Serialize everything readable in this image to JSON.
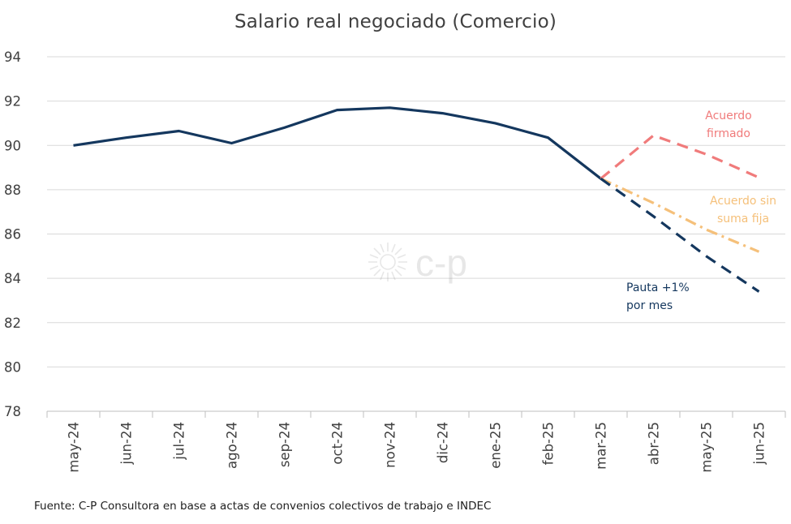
{
  "chart_data": {
    "type": "line",
    "title": "Salario real negociado (Comercio)",
    "xlabel": "",
    "ylabel": "",
    "categories": [
      "may-24",
      "jun-24",
      "jul-24",
      "ago-24",
      "sep-24",
      "oct-24",
      "nov-24",
      "dic-24",
      "ene-25",
      "feb-25",
      "mar-25",
      "abr-25",
      "may-25",
      "jun-25"
    ],
    "ylim": [
      78,
      94
    ],
    "yticks": [
      "78",
      "80",
      "82",
      "84",
      "86",
      "88",
      "90",
      "92",
      "94"
    ],
    "grid": true,
    "legend": "none",
    "series": [
      {
        "values": [
          90.0,
          90.35,
          90.65,
          90.1,
          90.8,
          91.6,
          91.7,
          91.45,
          91.0,
          90.35,
          88.5,
          null,
          null,
          null
        ],
        "color": "#14375e",
        "style": "solid"
      },
      {
        "name": "Acuerdo firmado",
        "values": [
          null,
          null,
          null,
          null,
          null,
          null,
          null,
          null,
          null,
          null,
          88.5,
          90.45,
          89.6,
          88.55
        ],
        "color": "#f07b7b",
        "style": "dashed"
      },
      {
        "name": "Acuerdo sin suma fija",
        "values": [
          null,
          null,
          null,
          null,
          null,
          null,
          null,
          null,
          null,
          null,
          88.5,
          87.4,
          86.2,
          85.2
        ],
        "color": "#f5c07a",
        "style": "dashdot"
      },
      {
        "name": "Pauta +1% por mes",
        "values": [
          null,
          null,
          null,
          null,
          null,
          null,
          null,
          null,
          null,
          null,
          88.5,
          86.8,
          85.0,
          83.4
        ],
        "color": "#14375e",
        "style": "dashed"
      }
    ],
    "annotations": [
      {
        "lines": [
          "Acuerdo",
          "firmado"
        ],
        "color": "#f07b7b"
      },
      {
        "lines": [
          "Acuerdo sin",
          "suma fija"
        ],
        "color": "#f5c07a"
      },
      {
        "lines": [
          "Pauta +1%",
          "por mes"
        ],
        "color": "#14375e"
      }
    ]
  },
  "watermark": "c-p",
  "source": "Fuente: C-P Consultora en base a actas de convenios colectivos de trabajo e INDEC"
}
